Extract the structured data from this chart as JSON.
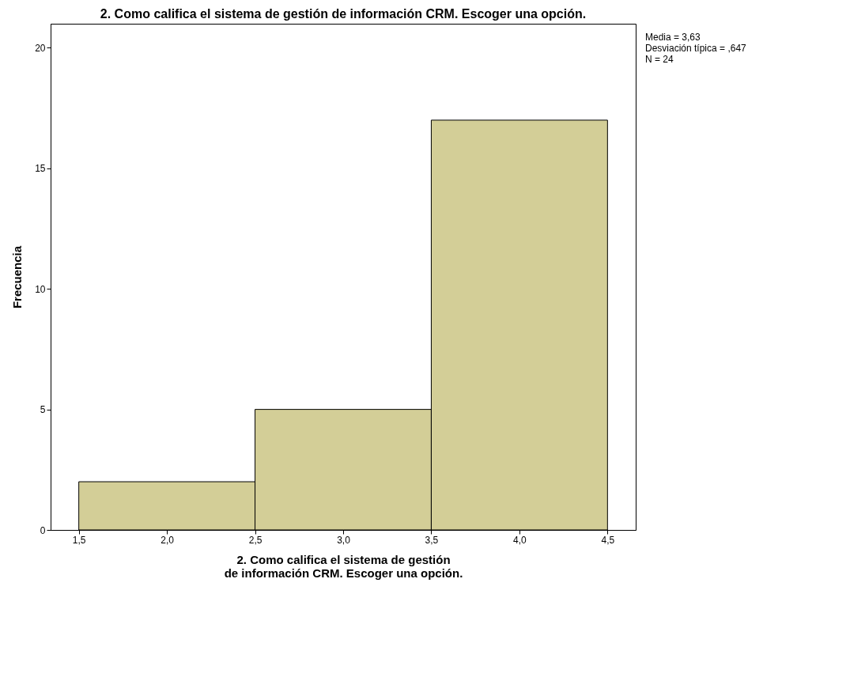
{
  "chart_data": {
    "type": "histogram",
    "title": "2. Como califica el sistema de gestión de información CRM. Escoger una opción.",
    "xlabel": "2. Como califica el sistema de gestión de información CRM. Escoger una opción.",
    "ylabel": "Frecuencia",
    "bins": [
      1.5,
      2.5,
      3.5,
      4.5
    ],
    "values": [
      2,
      5,
      17
    ],
    "color": "#d3ce97",
    "xlim": [
      1.34,
      4.66
    ],
    "ylim": [
      0,
      21
    ],
    "xticks": [
      {
        "value": 1.5,
        "label": "1,5"
      },
      {
        "value": 2.0,
        "label": "2,0"
      },
      {
        "value": 2.5,
        "label": "2,5"
      },
      {
        "value": 3.0,
        "label": "3,0"
      },
      {
        "value": 3.5,
        "label": "3,5"
      },
      {
        "value": 4.0,
        "label": "4,0"
      },
      {
        "value": 4.5,
        "label": "4,5"
      }
    ],
    "yticks": [
      0,
      5,
      10,
      15,
      20
    ],
    "grid": false,
    "annotations": [
      "Media = 3,63",
      "Desviación típica = ,647",
      "N = 24"
    ]
  }
}
